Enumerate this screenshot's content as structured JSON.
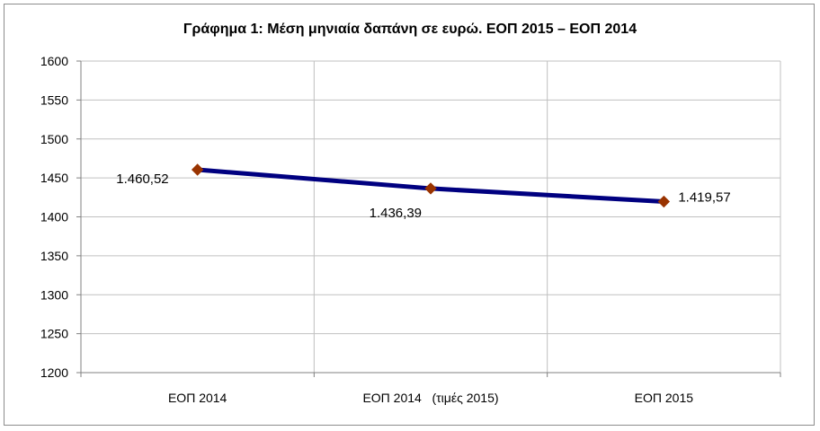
{
  "chart_data": {
    "type": "line",
    "title": "Γράφημα 1: Μέση μηνιαία δαπάνη σε ευρώ. ΕΟΠ 2015 – ΕΟΠ 2014",
    "xlabel": "",
    "ylabel": "",
    "categories": [
      "ΕΟΠ 2014",
      "ΕΟΠ 2014   (τιμές 2015)",
      "ΕΟΠ 2015"
    ],
    "series": [
      {
        "values": [
          1460.52,
          1436.39,
          1419.57
        ],
        "data_labels": [
          "1.460,52",
          "1.436,39",
          "1.419,57"
        ]
      }
    ],
    "ylim": [
      1200,
      1600
    ],
    "yticks": [
      1200,
      1250,
      1300,
      1350,
      1400,
      1450,
      1500,
      1550,
      1600
    ],
    "grid": true,
    "legend": "none",
    "colors": {
      "line": "#000080",
      "marker": "#993300",
      "grid": "#c0c0c0",
      "axis": "#808080"
    }
  }
}
